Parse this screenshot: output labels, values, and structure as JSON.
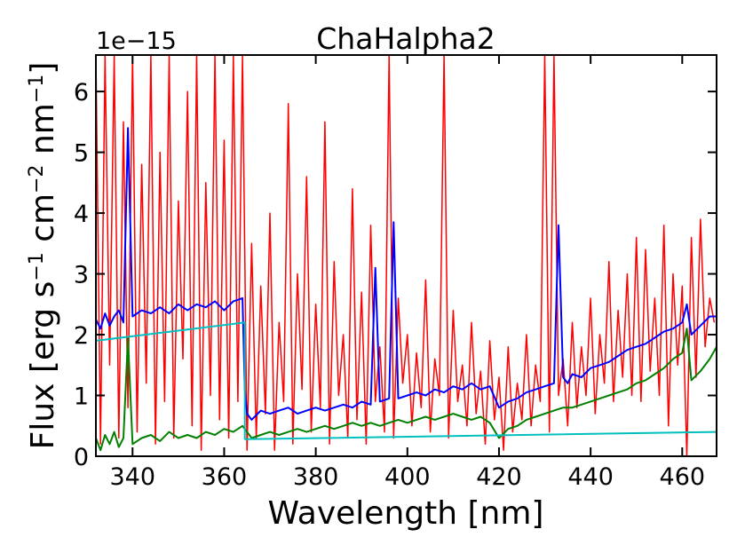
{
  "chart_data": {
    "type": "line",
    "title": "ChaHalpha2",
    "xlabel": "Wavelength [nm]",
    "ylabel_main": "Flux [erg s",
    "ylabel_sup1": "−1",
    "ylabel_mid": " cm",
    "ylabel_sup2": "−2",
    "ylabel_mid2": " nm",
    "ylabel_sup3": "−1",
    "ylabel_end": "]",
    "y_offset_label": "1e−15",
    "xlim": [
      332,
      467.5
    ],
    "ylim": [
      0,
      6.6
    ],
    "x_ticks": [
      340,
      360,
      380,
      400,
      420,
      440,
      460
    ],
    "x_tick_labels": [
      "340",
      "360",
      "380",
      "400",
      "420",
      "440",
      "460"
    ],
    "y_ticks": [
      0,
      1,
      2,
      3,
      4,
      5,
      6
    ],
    "y_tick_labels": [
      "0",
      "1",
      "2",
      "3",
      "4",
      "5",
      "6"
    ],
    "series": [
      {
        "name": "red",
        "color": "#ff0000",
        "x": [
          332,
          333,
          334,
          335,
          336,
          337,
          338,
          339,
          340,
          341,
          342,
          343,
          344,
          345,
          346,
          347,
          348,
          349,
          350,
          351,
          352,
          353,
          354,
          355,
          356,
          357,
          358,
          359,
          360,
          361,
          362,
          363,
          364,
          365,
          366,
          367,
          368,
          369,
          370,
          371,
          372,
          373,
          374,
          375,
          376,
          377,
          378,
          379,
          380,
          381,
          382,
          383,
          384,
          385,
          386,
          387,
          388,
          389,
          390,
          391,
          392,
          393,
          394,
          395,
          396,
          397,
          398,
          399,
          400,
          401,
          402,
          403,
          404,
          405,
          406,
          407,
          408,
          409,
          410,
          411,
          412,
          413,
          414,
          415,
          416,
          417,
          418,
          419,
          420,
          421,
          422,
          423,
          424,
          425,
          426,
          427,
          428,
          429,
          430,
          431,
          432,
          433,
          434,
          435,
          436,
          437,
          438,
          439,
          440,
          441,
          442,
          443,
          444,
          445,
          446,
          447,
          448,
          449,
          450,
          451,
          452,
          453,
          454,
          455,
          456,
          457,
          458,
          459,
          460,
          461,
          462,
          463,
          464,
          465,
          466,
          467
        ],
        "y": [
          6.6,
          0.2,
          6.6,
          1.5,
          6.6,
          0.3,
          5.5,
          0.8,
          6.6,
          0.4,
          4.8,
          1.2,
          6.6,
          0.2,
          5.0,
          0.9,
          6.6,
          0.3,
          4.2,
          1.6,
          6.0,
          0.5,
          6.6,
          0.1,
          4.5,
          1.0,
          6.6,
          0.6,
          5.2,
          0.3,
          6.6,
          0.9,
          6.6,
          0.1,
          3.5,
          0.3,
          2.8,
          0.7,
          4.0,
          0.1,
          2.2,
          0.9,
          5.8,
          0.2,
          3.0,
          1.1,
          4.6,
          0.4,
          2.5,
          0.8,
          5.5,
          0.2,
          3.2,
          1.0,
          2.0,
          0.3,
          4.4,
          0.6,
          2.7,
          0.2,
          3.8,
          0.9,
          1.8,
          0.4,
          6.6,
          0.3,
          2.6,
          1.2,
          2.0,
          0.5,
          1.7,
          0.8,
          2.9,
          0.4,
          1.6,
          1.0,
          6.6,
          0.3,
          2.4,
          0.9,
          1.5,
          0.5,
          2.2,
          0.7,
          1.4,
          0.2,
          1.9,
          0.6,
          1.3,
          0.1,
          1.8,
          0.4,
          1.2,
          0.6,
          2.0,
          0.5,
          1.5,
          0.9,
          6.6,
          0.4,
          6.6,
          1.0,
          1.6,
          0.5,
          2.2,
          0.8,
          1.8,
          1.0,
          2.6,
          0.7,
          2.0,
          1.2,
          3.2,
          0.9,
          2.4,
          1.3,
          3.0,
          1.0,
          3.6,
          0.9,
          3.4,
          1.4,
          2.6,
          1.0,
          3.8,
          0.5,
          3.0,
          1.5,
          2.8,
          0.0,
          3.6,
          1.3,
          3.9,
          1.8,
          2.6,
          2.2
        ]
      },
      {
        "name": "blue",
        "color": "#0000ff",
        "x": [
          332,
          333,
          334,
          335,
          336,
          337,
          338,
          339,
          340,
          342,
          344,
          346,
          348,
          350,
          352,
          354,
          356,
          358,
          360,
          362,
          364,
          364.5,
          365,
          366,
          368,
          370,
          372,
          374,
          376,
          378,
          380,
          382,
          384,
          386,
          388,
          390,
          392,
          393,
          394,
          396,
          397,
          398,
          400,
          402,
          404,
          406,
          408,
          410,
          412,
          414,
          416,
          418,
          420,
          422,
          424,
          426,
          428,
          430,
          432,
          433,
          434,
          435,
          436,
          438,
          440,
          442,
          444,
          446,
          448,
          450,
          452,
          454,
          456,
          458,
          460,
          461,
          462,
          464,
          466,
          467.5
        ],
        "y": [
          2.25,
          2.1,
          2.35,
          2.15,
          2.3,
          2.4,
          2.2,
          5.4,
          2.3,
          2.4,
          2.35,
          2.45,
          2.35,
          2.5,
          2.4,
          2.5,
          2.45,
          2.55,
          2.4,
          2.55,
          2.6,
          1.1,
          0.7,
          0.6,
          0.75,
          0.7,
          0.75,
          0.8,
          0.7,
          0.75,
          0.8,
          0.75,
          0.8,
          0.85,
          0.8,
          0.9,
          0.85,
          3.1,
          0.9,
          0.95,
          3.85,
          0.95,
          1.0,
          1.05,
          1.0,
          1.1,
          1.05,
          1.15,
          1.1,
          1.2,
          1.1,
          1.15,
          0.8,
          0.9,
          0.95,
          1.05,
          1.1,
          1.15,
          1.2,
          3.8,
          1.3,
          1.2,
          1.35,
          1.3,
          1.45,
          1.5,
          1.55,
          1.65,
          1.75,
          1.8,
          1.85,
          1.95,
          2.05,
          2.1,
          2.2,
          2.5,
          2.0,
          2.15,
          2.3,
          2.3
        ]
      },
      {
        "name": "green",
        "color": "#008000",
        "x": [
          332,
          333,
          334,
          335,
          336,
          337,
          338,
          339,
          340,
          342,
          344,
          346,
          348,
          350,
          352,
          354,
          356,
          358,
          360,
          362,
          364,
          366,
          368,
          370,
          372,
          374,
          376,
          378,
          380,
          382,
          384,
          386,
          388,
          390,
          392,
          394,
          396,
          398,
          400,
          402,
          404,
          406,
          408,
          410,
          412,
          414,
          416,
          418,
          420,
          422,
          424,
          426,
          428,
          430,
          432,
          434,
          436,
          438,
          440,
          442,
          444,
          446,
          448,
          450,
          452,
          454,
          456,
          458,
          460,
          461,
          462,
          464,
          466,
          467.5
        ],
        "y": [
          0.3,
          0.1,
          0.35,
          0.2,
          0.4,
          0.15,
          0.3,
          1.95,
          0.2,
          0.3,
          0.35,
          0.25,
          0.4,
          0.3,
          0.35,
          0.3,
          0.4,
          0.35,
          0.45,
          0.4,
          0.5,
          0.3,
          0.35,
          0.4,
          0.35,
          0.4,
          0.45,
          0.4,
          0.45,
          0.5,
          0.45,
          0.5,
          0.55,
          0.5,
          0.55,
          0.5,
          0.55,
          0.6,
          0.55,
          0.6,
          0.65,
          0.6,
          0.65,
          0.7,
          0.65,
          0.6,
          0.65,
          0.55,
          0.3,
          0.45,
          0.5,
          0.6,
          0.65,
          0.7,
          0.75,
          0.8,
          0.8,
          0.85,
          0.9,
          0.95,
          1.0,
          1.05,
          1.1,
          1.2,
          1.25,
          1.35,
          1.45,
          1.6,
          1.7,
          2.1,
          1.25,
          1.4,
          1.6,
          1.8
        ]
      },
      {
        "name": "cyan",
        "color": "#00bfbf",
        "x": [
          332,
          364.5,
          364.5,
          365,
          467.5
        ],
        "y": [
          1.9,
          2.2,
          0.28,
          0.28,
          0.4
        ]
      }
    ]
  }
}
